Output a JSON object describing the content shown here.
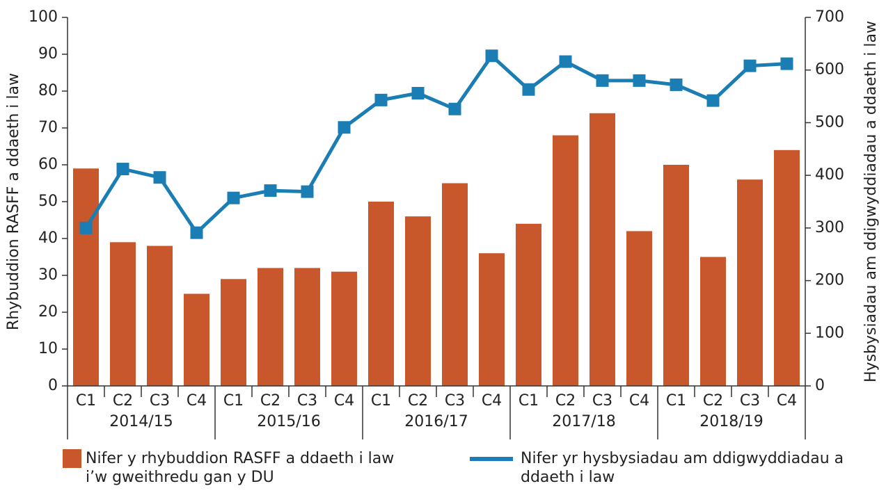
{
  "chart_data": {
    "type": "bar",
    "categories": [
      "C1",
      "C2",
      "C3",
      "C4",
      "C1",
      "C2",
      "C3",
      "C4",
      "C1",
      "C2",
      "C3",
      "C4",
      "C1",
      "C2",
      "C3",
      "C4",
      "C1",
      "C2",
      "C3",
      "C4"
    ],
    "groups": [
      "2014/15",
      "2015/16",
      "2016/17",
      "2017/18",
      "2018/19"
    ],
    "ylabel": "Rhybuddion RASFF a ddaeth i law",
    "y2label": "Hysbysiadau am ddigwyddiadau a ddaeth i law",
    "ylim": [
      0,
      100
    ],
    "yticks": [
      0,
      10,
      20,
      30,
      40,
      50,
      60,
      70,
      80,
      90,
      100
    ],
    "y2lim": [
      0,
      700
    ],
    "y2ticks": [
      0,
      100,
      200,
      300,
      400,
      500,
      600,
      700
    ],
    "series": [
      {
        "name": "Nifer y rhybuddion RASFF a ddaeth i law i’w gweithredu gan y DU",
        "type": "bar",
        "color": "#c8582b",
        "values": [
          59,
          39,
          38,
          25,
          29,
          32,
          32,
          31,
          50,
          46,
          55,
          36,
          44,
          68,
          74,
          42,
          60,
          35,
          56,
          64
        ]
      },
      {
        "name": "Nifer yr hysbysiadau am ddigwyddiadau a ddaeth i law",
        "type": "line",
        "axis": "y2",
        "color": "#1a7db3",
        "values": [
          300,
          412,
          396,
          291,
          357,
          371,
          369,
          491,
          543,
          556,
          526,
          627,
          563,
          616,
          580,
          580,
          572,
          542,
          608,
          612
        ]
      }
    ],
    "legend": "bottom"
  }
}
